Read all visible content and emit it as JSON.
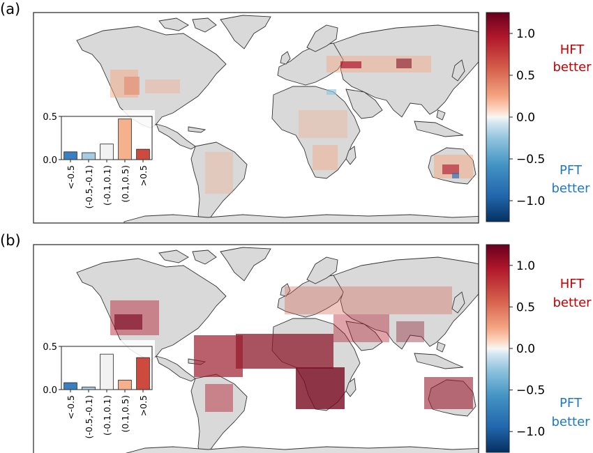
{
  "panels": [
    {
      "label": "(a)",
      "colorbar": {
        "ticks": [
          "1.0",
          "0.5",
          "0.0",
          "−0.5",
          "−1.0"
        ],
        "tick_values": [
          1.0,
          0.5,
          0.0,
          -0.5,
          -1.0
        ],
        "range": [
          -1.25,
          1.25
        ],
        "annotation_top": [
          "HFT",
          "better"
        ],
        "annotation_bottom": [
          "PFT",
          "better"
        ]
      }
    },
    {
      "label": "(b)",
      "colorbar": {
        "ticks": [
          "1.0",
          "0.5",
          "0.0",
          "−0.5",
          "−1.0"
        ],
        "tick_values": [
          1.0,
          0.5,
          0.0,
          -0.5,
          -1.0
        ],
        "range": [
          -1.25,
          1.25
        ],
        "annotation_top": [
          "HFT",
          "better"
        ],
        "annotation_bottom": [
          "PFT",
          "better"
        ]
      }
    }
  ],
  "colors": {
    "hft": "#c00000",
    "pft": "#1f77c4",
    "land": "#d9d9d9",
    "bar_categories": [
      "#3a7fbf",
      "#a6cbe3",
      "#f2f2f2",
      "#f5b08e",
      "#cd4a3e"
    ]
  },
  "chart_data": [
    {
      "type": "bar",
      "panel": "(a)",
      "categories": [
        "<-0.5",
        "(-0.5,-0.1)",
        "(-0.1,0.1)",
        "(0.1,0.5)",
        ">0.5"
      ],
      "values": [
        0.09,
        0.08,
        0.18,
        0.47,
        0.12
      ],
      "yticks": [
        "0.0",
        "0.5"
      ],
      "ylim": [
        0,
        0.5
      ]
    },
    {
      "type": "bar",
      "panel": "(b)",
      "categories": [
        "<-0.5",
        "(-0.5,-0.1)",
        "(-0.1,0.1)",
        "(0.1,0.5)",
        ">0.5"
      ],
      "values": [
        0.08,
        0.03,
        0.41,
        0.11,
        0.37
      ],
      "yticks": [
        "0.0",
        "0.5"
      ],
      "ylim": [
        0,
        0.5
      ]
    }
  ]
}
